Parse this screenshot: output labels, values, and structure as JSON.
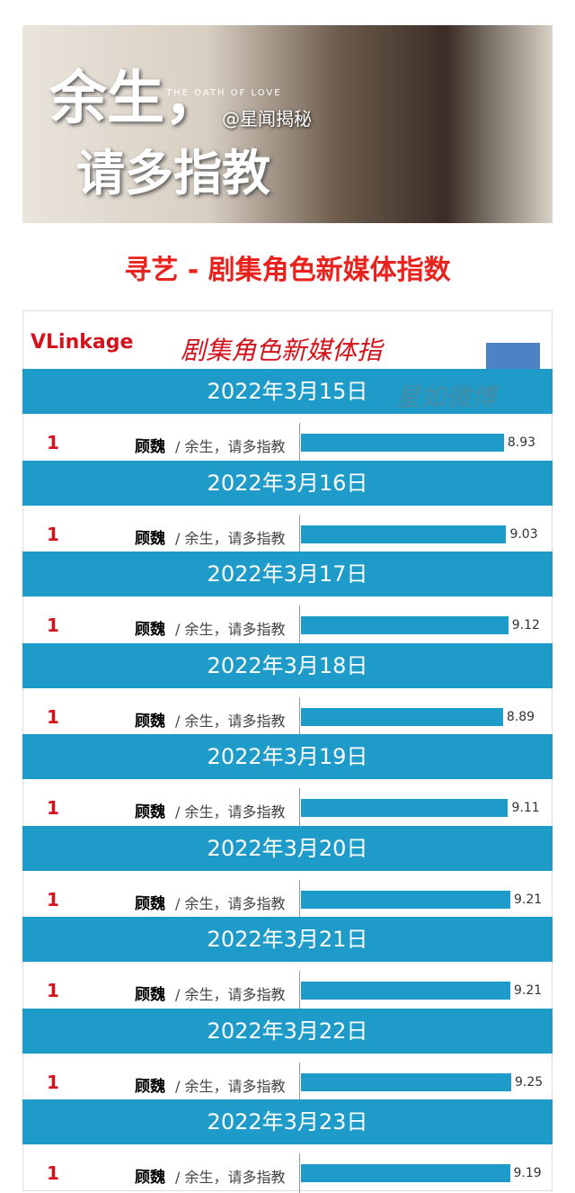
{
  "banner": {
    "title_line1": "余生，",
    "title_line2": "请多指教",
    "english": "THE OATH OF LOVE",
    "credit": "@星闻揭秘"
  },
  "title": "寻艺 - 剧集角色新媒体指数",
  "card": {
    "logo": "VLinkage",
    "heading": "剧集角色新媒体指",
    "watermark": "星如微博"
  },
  "entries": [
    {
      "date": "2022年3月15日",
      "rank": "1",
      "name": "顾魏",
      "show": "/ 余生，请多指教",
      "value": 8.93
    },
    {
      "date": "2022年3月16日",
      "rank": "1",
      "name": "顾魏",
      "show": "/ 余生，请多指教",
      "value": 9.03
    },
    {
      "date": "2022年3月17日",
      "rank": "1",
      "name": "顾魏",
      "show": "/ 余生，请多指教",
      "value": 9.12
    },
    {
      "date": "2022年3月18日",
      "rank": "1",
      "name": "顾魏",
      "show": "/ 余生，请多指教",
      "value": 8.89
    },
    {
      "date": "2022年3月19日",
      "rank": "1",
      "name": "顾魏",
      "show": "/ 余生，请多指教",
      "value": 9.11
    },
    {
      "date": "2022年3月20日",
      "rank": "1",
      "name": "顾魏",
      "show": "/ 余生，请多指教",
      "value": 9.21
    },
    {
      "date": "2022年3月21日",
      "rank": "1",
      "name": "顾魏",
      "show": "/ 余生，请多指教",
      "value": 9.21
    },
    {
      "date": "2022年3月22日",
      "rank": "1",
      "name": "顾魏",
      "show": "/ 余生，请多指教",
      "value": 9.25
    },
    {
      "date": "2022年3月23日",
      "rank": "1",
      "name": "顾魏",
      "show": "/ 余生，请多指教",
      "value": 9.19
    }
  ]
}
